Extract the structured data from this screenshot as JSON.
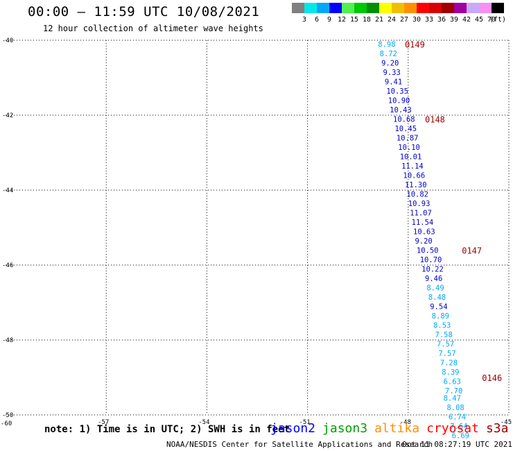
{
  "header": {
    "title": "00:00 – 11:59 UTC 10/08/2021",
    "subtitle": "12 hour collection of altimeter wave heights"
  },
  "legend": {
    "unit": "(ft)",
    "entries": [
      {
        "label": "3",
        "color": "#808080"
      },
      {
        "label": "6",
        "color": "#00e8e8"
      },
      {
        "label": "9",
        "color": "#00a8f8"
      },
      {
        "label": "12",
        "color": "#0000ff"
      },
      {
        "label": "15",
        "color": "#50f050"
      },
      {
        "label": "18",
        "color": "#00c800"
      },
      {
        "label": "21",
        "color": "#009000"
      },
      {
        "label": "24",
        "color": "#ffff00"
      },
      {
        "label": "27",
        "color": "#f0c000"
      },
      {
        "label": "30",
        "color": "#ff9000"
      },
      {
        "label": "33",
        "color": "#ff0000"
      },
      {
        "label": "36",
        "color": "#d80000"
      },
      {
        "label": "39",
        "color": "#a00000"
      },
      {
        "label": "42",
        "color": "#a000a0"
      },
      {
        "label": "45",
        "color": "#c8a8f8"
      },
      {
        "label": "70",
        "color": "#f890f0"
      },
      {
        "label": "",
        "color": "#000000"
      }
    ]
  },
  "map": {
    "lon_ticks": [
      "-57",
      "-54",
      "-51",
      "-48",
      "-45"
    ],
    "lat_ticks": [
      "-40",
      "-42",
      "-44",
      "-46",
      "-48",
      "-50"
    ],
    "corner_label": "-60",
    "lon_range": [
      -60,
      -45
    ],
    "lat_range": [
      -40,
      -50
    ]
  },
  "track_labels": [
    {
      "text": "0149",
      "lon": -48.1,
      "lat": -40.1
    },
    {
      "text": "0148",
      "lon": -47.5,
      "lat": -42.1
    },
    {
      "text": "0147",
      "lon": -46.4,
      "lat": -45.6
    },
    {
      "text": "0146",
      "lon": -45.8,
      "lat": -49.0
    }
  ],
  "observations": [
    {
      "swh": "8.98",
      "lon": -48.9,
      "lat": -40.1,
      "color": "#00a8f8"
    },
    {
      "swh": "8.72",
      "lon": -48.85,
      "lat": -40.35,
      "color": "#00a8f8"
    },
    {
      "swh": "9.20",
      "lon": -48.8,
      "lat": -40.6,
      "color": "#0000cc"
    },
    {
      "swh": "9.33",
      "lon": -48.75,
      "lat": -40.85,
      "color": "#0000cc"
    },
    {
      "swh": "9.41",
      "lon": -48.7,
      "lat": -41.1,
      "color": "#0000cc"
    },
    {
      "swh": "10.35",
      "lon": -48.65,
      "lat": -41.35,
      "color": "#0000cc"
    },
    {
      "swh": "10.90",
      "lon": -48.6,
      "lat": -41.6,
      "color": "#0000cc"
    },
    {
      "swh": "10.43",
      "lon": -48.55,
      "lat": -41.85,
      "color": "#0000cc"
    },
    {
      "swh": "10.68",
      "lon": -48.45,
      "lat": -42.1,
      "color": "#0000cc"
    },
    {
      "swh": "10.45",
      "lon": -48.4,
      "lat": -42.35,
      "color": "#0000cc"
    },
    {
      "swh": "10.87",
      "lon": -48.35,
      "lat": -42.6,
      "color": "#0000cc"
    },
    {
      "swh": "10.10",
      "lon": -48.3,
      "lat": -42.85,
      "color": "#0000cc"
    },
    {
      "swh": "10.01",
      "lon": -48.25,
      "lat": -43.1,
      "color": "#0000cc"
    },
    {
      "swh": "11.14",
      "lon": -48.2,
      "lat": -43.35,
      "color": "#0000cc"
    },
    {
      "swh": "10.66",
      "lon": -48.15,
      "lat": -43.6,
      "color": "#0000cc"
    },
    {
      "swh": "11.30",
      "lon": -48.1,
      "lat": -43.85,
      "color": "#0000cc"
    },
    {
      "swh": "10.82",
      "lon": -48.05,
      "lat": -44.1,
      "color": "#0000cc"
    },
    {
      "swh": "10.93",
      "lon": -48.0,
      "lat": -44.35,
      "color": "#0000cc"
    },
    {
      "swh": "11.07",
      "lon": -47.95,
      "lat": -44.6,
      "color": "#0000cc"
    },
    {
      "swh": "11.54",
      "lon": -47.9,
      "lat": -44.85,
      "color": "#0000cc"
    },
    {
      "swh": "10.63",
      "lon": -47.85,
      "lat": -45.1,
      "color": "#0000cc"
    },
    {
      "swh": "9.20",
      "lon": -47.8,
      "lat": -45.35,
      "color": "#0000cc"
    },
    {
      "swh": "10.50",
      "lon": -47.75,
      "lat": -45.6,
      "color": "#0000cc"
    },
    {
      "swh": "10.70",
      "lon": -47.65,
      "lat": -45.85,
      "color": "#0000cc"
    },
    {
      "swh": "10.22",
      "lon": -47.6,
      "lat": -46.1,
      "color": "#0000cc"
    },
    {
      "swh": "9.46",
      "lon": -47.5,
      "lat": -46.35,
      "color": "#0000cc"
    },
    {
      "swh": "8.49",
      "lon": -47.45,
      "lat": -46.6,
      "color": "#00a8f8"
    },
    {
      "swh": "8.48",
      "lon": -47.4,
      "lat": -46.85,
      "color": "#00a8f8"
    },
    {
      "swh": "9.54",
      "lon": -47.35,
      "lat": -47.1,
      "color": "#0000cc"
    },
    {
      "swh": "8.89",
      "lon": -47.3,
      "lat": -47.35,
      "color": "#00a8f8"
    },
    {
      "swh": "8.53",
      "lon": -47.25,
      "lat": -47.6,
      "color": "#00a8f8"
    },
    {
      "swh": "7.58",
      "lon": -47.2,
      "lat": -47.85,
      "color": "#00a8f8"
    },
    {
      "swh": "7.57",
      "lon": -47.15,
      "lat": -48.1,
      "color": "#00a8f8"
    },
    {
      "swh": "7.57",
      "lon": -47.1,
      "lat": -48.35,
      "color": "#00a8f8"
    },
    {
      "swh": "7.28",
      "lon": -47.05,
      "lat": -48.6,
      "color": "#00a8f8"
    },
    {
      "swh": "8.39",
      "lon": -47.0,
      "lat": -48.85,
      "color": "#00a8f8"
    },
    {
      "swh": "6.63",
      "lon": -46.95,
      "lat": -49.1,
      "color": "#00a8f8"
    },
    {
      "swh": "7.70",
      "lon": -46.9,
      "lat": -49.35,
      "color": "#00a8f8"
    },
    {
      "swh": "8.47",
      "lon": -46.95,
      "lat": -49.55,
      "color": "#00a8f8"
    },
    {
      "swh": "8.08",
      "lon": -46.85,
      "lat": -49.8,
      "color": "#00a8f8"
    },
    {
      "swh": "6.74",
      "lon": -46.8,
      "lat": -50.05,
      "color": "#00a8f8"
    },
    {
      "swh": "7.64",
      "lon": -46.75,
      "lat": -50.3,
      "color": "#00a8f8"
    },
    {
      "swh": "6.69",
      "lon": -46.7,
      "lat": -50.55,
      "color": "#00a8f8"
    }
  ],
  "footer": {
    "note": "note: 1) Time is in UTC; 2) SWH is in feet",
    "satellites": [
      {
        "name": "jason2",
        "color": "#0000ff"
      },
      {
        "name": "jason3",
        "color": "#00a000"
      },
      {
        "name": "altika",
        "color": "#ff9000"
      },
      {
        "name": "cryosat",
        "color": "#ff0000"
      },
      {
        "name": "s3a",
        "color": "#a00000"
      }
    ],
    "credit": "NOAA/NESDIS Center for Satellite Applications and Research",
    "timestamp": "Oct 11 08:27:19 UTC 2021"
  }
}
